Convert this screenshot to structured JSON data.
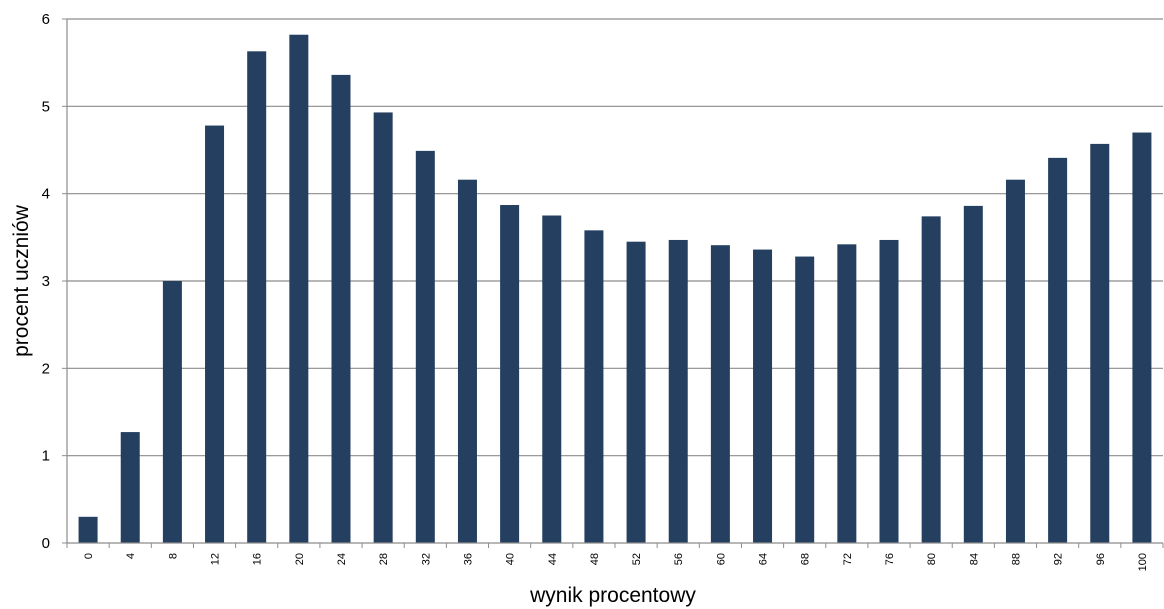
{
  "chart_data": {
    "type": "bar",
    "xlabel": "wynik procentowy",
    "ylabel": "procent uczniów",
    "ylim": [
      0,
      6
    ],
    "yticks": [
      0,
      1,
      2,
      3,
      4,
      5,
      6
    ],
    "grid": "horizontal",
    "legend": "none",
    "bar_color": "#243F60",
    "categories": [
      "0",
      "4",
      "8",
      "12",
      "16",
      "20",
      "24",
      "28",
      "32",
      "36",
      "40",
      "44",
      "48",
      "52",
      "56",
      "60",
      "64",
      "68",
      "72",
      "76",
      "80",
      "84",
      "88",
      "92",
      "96",
      "100"
    ],
    "values": [
      0.3,
      1.27,
      3.0,
      4.78,
      5.63,
      5.82,
      5.36,
      4.93,
      4.49,
      4.16,
      3.87,
      3.75,
      3.58,
      3.45,
      3.47,
      3.41,
      3.36,
      3.28,
      3.42,
      3.47,
      3.74,
      3.86,
      4.16,
      4.41,
      4.57,
      4.7
    ]
  }
}
